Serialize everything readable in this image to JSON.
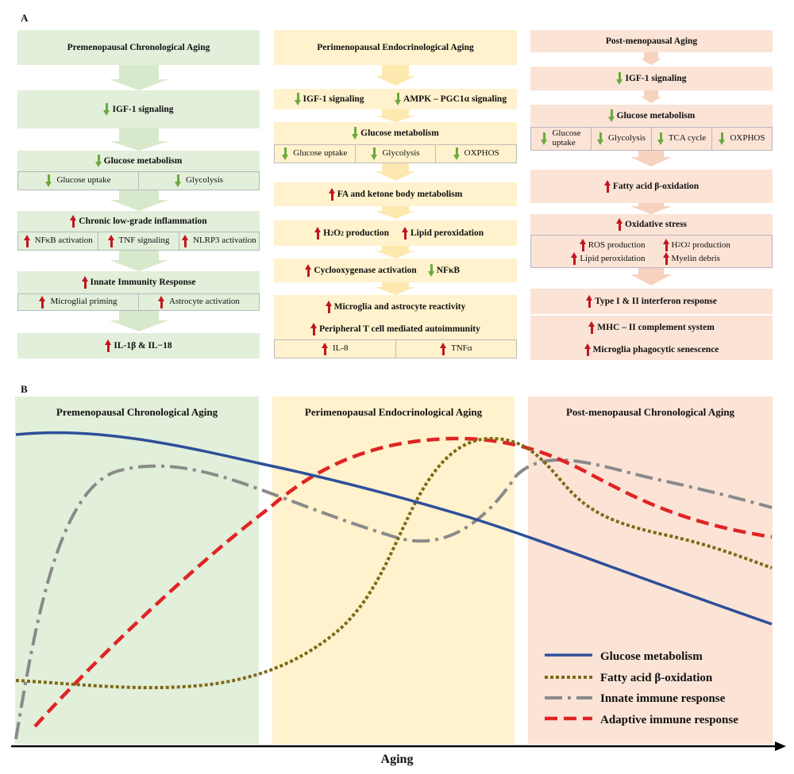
{
  "panelA": {
    "letter": "A",
    "col1": {
      "title": "Premenopausal Chronological Aging",
      "igf": "IGF-1 signaling",
      "glucose": "Glucose metabolism",
      "glucose_uptake": "Glucose uptake",
      "glycolysis": "Glycolysis",
      "inflammation": "Chronic low-grade inflammation",
      "nfkb": "NFκB activation",
      "tnf": "TNF signaling",
      "nlrp3": "NLRP3 activation",
      "innate": "Innate Immunity Response",
      "microglial": "Microglial priming",
      "astrocyte": "Astrocyte activation",
      "il": "IL-1β & IL−18"
    },
    "col2": {
      "title": "Perimenopausal Endocrinological Aging",
      "igf": "IGF-1 signaling",
      "ampk": "AMPK – PGC1α signaling",
      "glucose": "Glucose metabolism",
      "glucose_uptake": "Glucose uptake",
      "glycolysis": "Glycolysis",
      "oxphos": "OXPHOS",
      "fa": "FA and ketone body metabolism",
      "h2o2_a": "H",
      "h2o2_b": "2",
      "h2o2_c": "O",
      "h2o2_d": "2",
      "h2o2_e": " production",
      "lipid": "Lipid peroxidation",
      "cox": "Cyclooxygenase activation",
      "nfkb": "NFκB",
      "microglia": "Microglia and astrocyte reactivity",
      "tcell": "Peripheral T cell  mediated autoimmunity",
      "il8": "IL-8",
      "tnfa": "TNFα"
    },
    "col3": {
      "title": "Post-menopausal Aging",
      "igf": "IGF-1 signaling",
      "glucose": "Glucose metabolism",
      "glucose_uptake_1": "Glucose",
      "glucose_uptake_2": "uptake",
      "glycolysis": "Glycolysis",
      "tca": "TCA cycle",
      "oxphos": "OXPHOS",
      "fatty": "Fatty acid β-oxidation",
      "oxidative": "Oxidative stress",
      "ros": "ROS production",
      "h2o2_a": "H",
      "h2o2_b": "2",
      "h2o2_c": "O",
      "h2o2_d": "2",
      "h2o2_e": " production",
      "lipid": "Lipid peroxidation",
      "myelin": "Myelin debris",
      "interferon": "Type I & II interferon response",
      "mhc": "MHC – II complement system",
      "senescence": "Microglia phagocytic senescence"
    }
  },
  "panelB": {
    "letter": "B",
    "phase1": "Premenopausal Chronological Aging",
    "phase2": "Perimenopausal Endocrinological Aging",
    "phase3": "Post-menopausal Chronological Aging",
    "xlabel": "Aging",
    "legend": [
      {
        "label": "Glucose metabolism",
        "color": "#2e4f9a"
      },
      {
        "label": "Fatty acid β-oxidation",
        "color": "#7f6a16"
      },
      {
        "label": "Innate immune response",
        "color": "#8a8a8a"
      },
      {
        "label": "Adaptive immune response",
        "color": "#e02424"
      }
    ]
  },
  "colors": {
    "green": "#e2efda",
    "green_arrow": "#cfe3c0",
    "yellow": "#fff2cc",
    "yellow_arrow": "#fde9b0",
    "pink": "#fbe3d6",
    "pink_arrow": "#f6cfbb"
  }
}
